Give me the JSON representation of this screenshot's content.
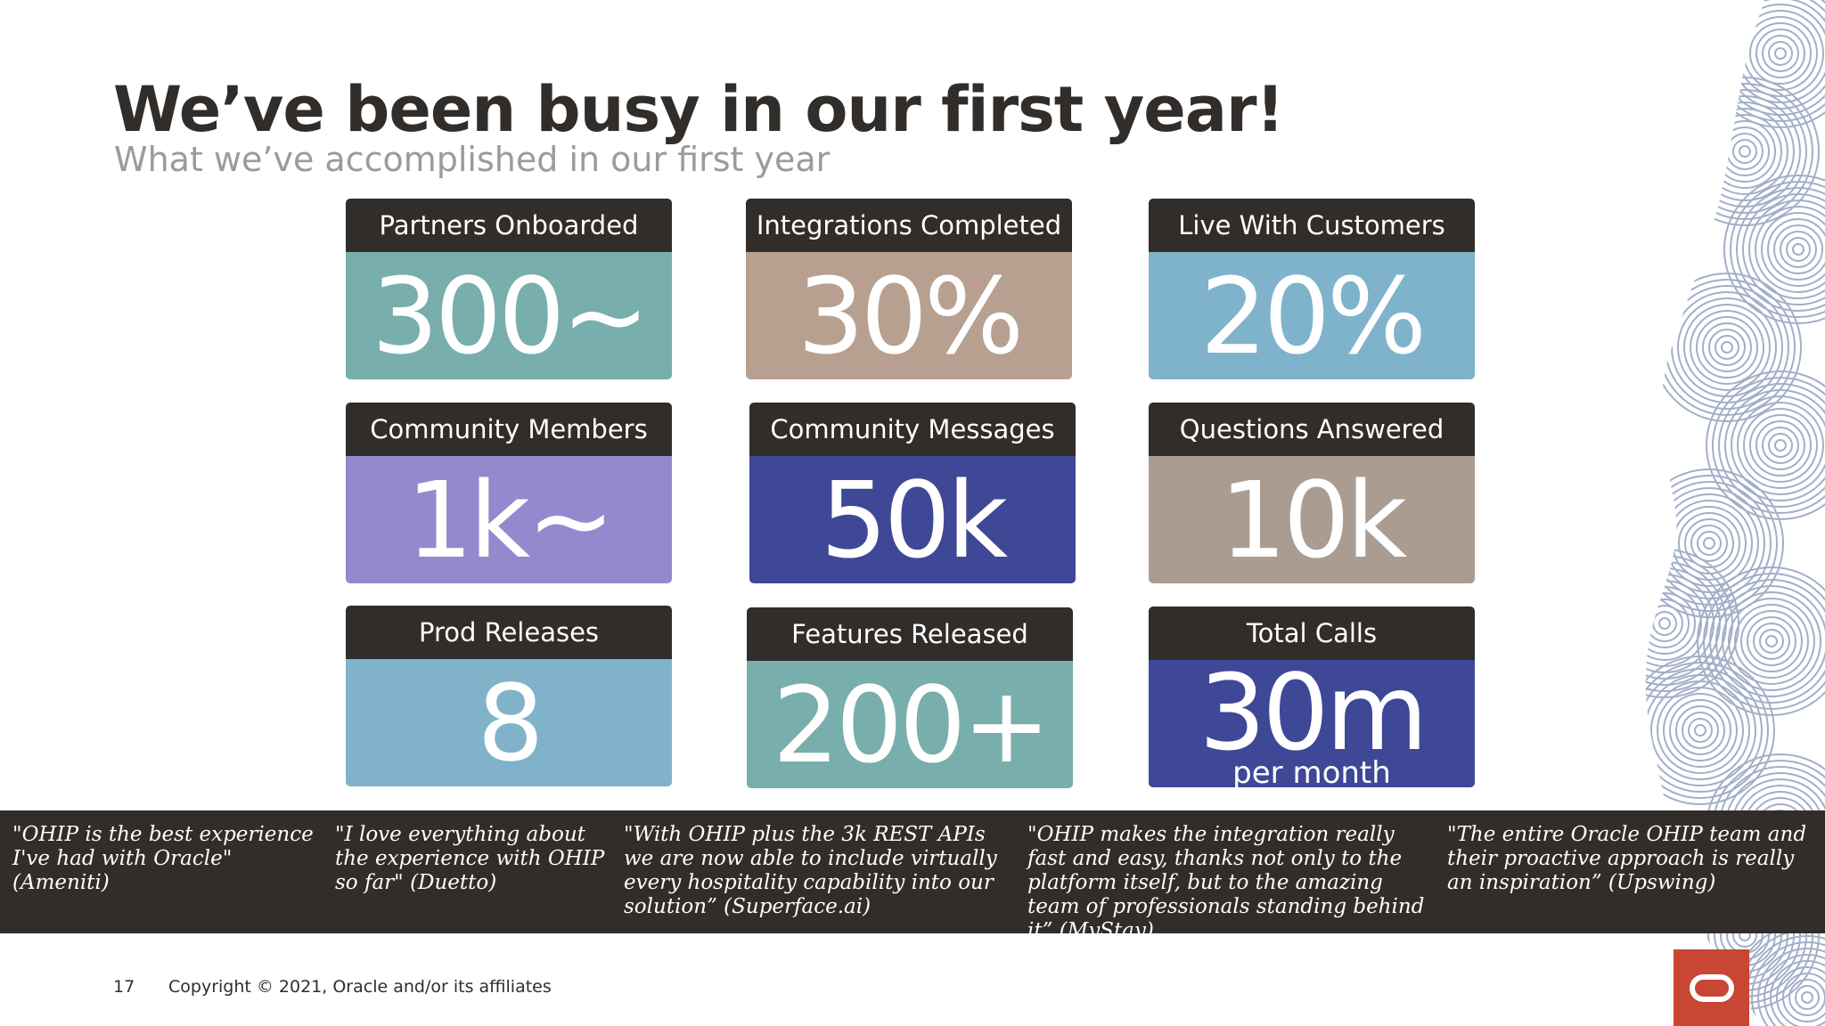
{
  "slide": {
    "title": "We’ve been busy in our first year!",
    "subtitle": "What we’ve accomplished in our first year"
  },
  "stats": [
    {
      "label": "Partners Onboarded",
      "value": "300~",
      "color": "#78aeab"
    },
    {
      "label": "Integrations Completed",
      "value": "30%",
      "color": "#b7a08f"
    },
    {
      "label": "Live With Customers",
      "value": "20%",
      "color": "#7fb3cb"
    },
    {
      "label": "Community Members",
      "value": "1k~",
      "color": "#9389cc"
    },
    {
      "label": "Community Messages",
      "value": "50k",
      "color": "#3f4797"
    },
    {
      "label": "Questions Answered",
      "value": "10k",
      "color": "#ab9c91"
    },
    {
      "label": "Prod Releases",
      "value": "8",
      "color": "#80b3c9"
    },
    {
      "label": "Features Released",
      "value": "200+",
      "color": "#78aeab"
    },
    {
      "label": "Total Calls",
      "value": "30m",
      "sub": "per month",
      "color": "#3f4797"
    }
  ],
  "quotes": [
    {
      "text": "\"OHIP is the best experience I've had with Oracle\" (Ameniti)"
    },
    {
      "text": "\"I love everything about the experience with OHIP so far\" (Duetto)"
    },
    {
      "text": "\"With OHIP plus the 3k REST APIs we are now able to include virtually every hospitality capability into our solution” (Superface.ai)"
    },
    {
      "text": "\"OHIP makes the integration really fast and easy, thanks not only to the platform itself, but to the amazing team of professionals standing behind it” (MyStay)"
    },
    {
      "text": "\"The entire Oracle OHIP team and their proactive approach is really an inspiration” (Upswing)"
    }
  ],
  "footer": {
    "page_number": "17",
    "copyright": "Copyright © 2021, Oracle and/or its affiliates"
  },
  "colors": {
    "dark": "#312d2a",
    "subtitle_gray": "#9a9aa0",
    "oracle_red": "#c74634",
    "deco_blue": "#9aa7c3"
  },
  "icons": {
    "logo": "oracle-logo-icon",
    "decoration": "swirl-pattern"
  }
}
